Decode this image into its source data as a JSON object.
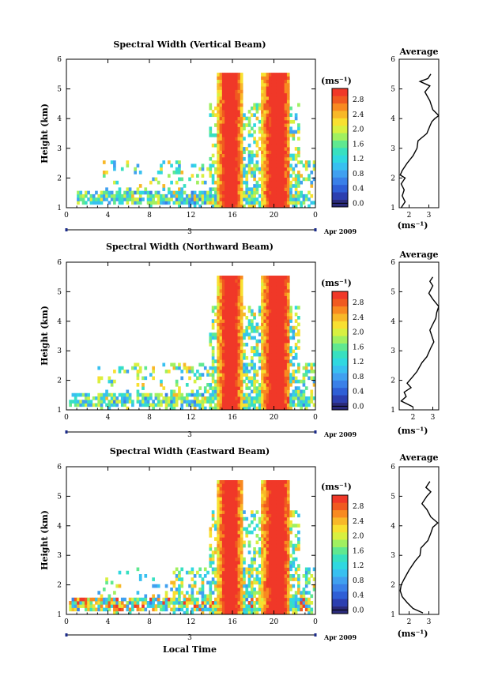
{
  "chart_data": [
    {
      "type": "heatmap",
      "title": "Spectral Width (Vertical Beam)",
      "ylabel": "Height (km)",
      "xlabel": "",
      "x_ticks": [
        "0",
        "4",
        "8",
        "12",
        "16",
        "20",
        "0"
      ],
      "y_ticks": [
        "1",
        "2",
        "3",
        "4",
        "5",
        "6"
      ],
      "xlim": [
        0,
        24
      ],
      "ylim": [
        1,
        6
      ],
      "date_label": "3",
      "date_suffix": "Apr 2009",
      "colorbar": {
        "label": "(ms⁻¹)",
        "ticks": [
          "0.0",
          "0.4",
          "0.8",
          "1.2",
          "1.6",
          "2.0",
          "2.4",
          "2.8"
        ],
        "range": [
          0,
          3.2
        ]
      },
      "profile": {
        "title": "Average",
        "xlabel": "(ms⁻¹)",
        "x_ticks": [
          "2",
          "3"
        ],
        "xlim": [
          1.5,
          3.5
        ],
        "points": [
          [
            1.6,
            1.0
          ],
          [
            1.8,
            1.2
          ],
          [
            1.65,
            1.4
          ],
          [
            1.75,
            1.6
          ],
          [
            1.6,
            1.8
          ],
          [
            1.8,
            2.0
          ],
          [
            1.55,
            2.1
          ],
          [
            1.65,
            2.25
          ],
          [
            1.9,
            2.5
          ],
          [
            2.2,
            2.75
          ],
          [
            2.4,
            3.0
          ],
          [
            2.45,
            3.25
          ],
          [
            2.9,
            3.5
          ],
          [
            3.05,
            3.75
          ],
          [
            3.15,
            3.9
          ],
          [
            3.3,
            4.0
          ],
          [
            3.5,
            4.1
          ],
          [
            3.2,
            4.3
          ],
          [
            3.05,
            4.6
          ],
          [
            2.8,
            4.9
          ],
          [
            3.05,
            5.1
          ],
          [
            2.55,
            5.25
          ],
          [
            2.95,
            5.35
          ],
          [
            3.1,
            5.5
          ]
        ]
      }
    },
    {
      "type": "heatmap",
      "title": "Spectral Width (Northward Beam)",
      "ylabel": "Height (km)",
      "xlabel": "",
      "x_ticks": [
        "0",
        "4",
        "8",
        "12",
        "16",
        "20",
        "0"
      ],
      "y_ticks": [
        "1",
        "2",
        "3",
        "4",
        "5",
        "6"
      ],
      "xlim": [
        0,
        24
      ],
      "ylim": [
        1,
        6
      ],
      "date_label": "3",
      "date_suffix": "Apr 2009",
      "colorbar": {
        "label": "(ms⁻¹)",
        "ticks": [
          "0.0",
          "0.4",
          "0.8",
          "1.2",
          "1.6",
          "2.0",
          "2.4",
          "2.8"
        ],
        "range": [
          0,
          3.2
        ]
      },
      "profile": {
        "title": "Average",
        "xlabel": "(ms⁻¹)",
        "x_ticks": [
          "2",
          "3"
        ],
        "xlim": [
          1.3,
          3.3
        ],
        "points": [
          [
            2.0,
            1.1
          ],
          [
            1.4,
            1.3
          ],
          [
            1.65,
            1.45
          ],
          [
            1.55,
            1.6
          ],
          [
            1.9,
            1.75
          ],
          [
            1.7,
            1.9
          ],
          [
            1.95,
            2.1
          ],
          [
            2.2,
            2.3
          ],
          [
            2.45,
            2.6
          ],
          [
            2.7,
            2.8
          ],
          [
            2.9,
            3.1
          ],
          [
            3.05,
            3.3
          ],
          [
            2.95,
            3.5
          ],
          [
            2.85,
            3.7
          ],
          [
            3.0,
            3.9
          ],
          [
            3.15,
            4.1
          ],
          [
            3.2,
            4.3
          ],
          [
            3.3,
            4.5
          ],
          [
            3.0,
            4.75
          ],
          [
            2.8,
            4.95
          ],
          [
            3.0,
            5.2
          ],
          [
            2.85,
            5.35
          ],
          [
            3.0,
            5.5
          ]
        ]
      }
    },
    {
      "type": "heatmap",
      "title": "Spectral Width (Eastward Beam)",
      "ylabel": "Height (km)",
      "xlabel": "Local Time",
      "x_ticks": [
        "0",
        "4",
        "8",
        "12",
        "16",
        "20",
        "0"
      ],
      "y_ticks": [
        "1",
        "2",
        "3",
        "4",
        "5",
        "6"
      ],
      "xlim": [
        0,
        24
      ],
      "ylim": [
        1,
        6
      ],
      "date_label": "3",
      "date_suffix": "Apr 2009",
      "colorbar": {
        "label": "(ms⁻¹)",
        "ticks": [
          "0.0",
          "0.4",
          "0.8",
          "1.2",
          "1.6",
          "2.0",
          "2.4",
          "2.8"
        ],
        "range": [
          0,
          3.2
        ]
      },
      "profile": {
        "title": "Average",
        "xlabel": "(ms⁻¹)",
        "x_ticks": [
          "2",
          "3"
        ],
        "xlim": [
          1.5,
          3.5
        ],
        "points": [
          [
            2.7,
            1.05
          ],
          [
            2.2,
            1.2
          ],
          [
            1.9,
            1.4
          ],
          [
            1.65,
            1.6
          ],
          [
            1.55,
            1.8
          ],
          [
            1.6,
            2.0
          ],
          [
            1.75,
            2.2
          ],
          [
            2.0,
            2.5
          ],
          [
            2.3,
            2.8
          ],
          [
            2.55,
            3.0
          ],
          [
            2.6,
            3.25
          ],
          [
            2.95,
            3.5
          ],
          [
            3.1,
            3.75
          ],
          [
            3.2,
            3.95
          ],
          [
            3.45,
            4.1
          ],
          [
            3.1,
            4.3
          ],
          [
            2.9,
            4.55
          ],
          [
            2.65,
            4.75
          ],
          [
            2.9,
            5.0
          ],
          [
            3.1,
            5.15
          ],
          [
            2.85,
            5.3
          ],
          [
            3.05,
            5.5
          ]
        ]
      }
    }
  ]
}
